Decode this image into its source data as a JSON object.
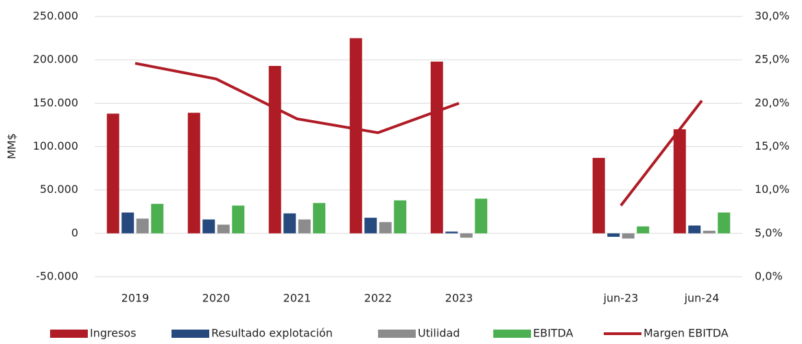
{
  "chart_data": {
    "type": "bar",
    "y_label": "MM$",
    "categories": [
      "2019",
      "2020",
      "2021",
      "2022",
      "2023",
      null,
      "jun-23",
      "jun-24"
    ],
    "series": [
      {
        "name": "Ingresos",
        "color": "#b01c26",
        "values": [
          138000,
          139000,
          193000,
          225000,
          198000,
          null,
          87000,
          120000
        ]
      },
      {
        "name": "Resultado explotación",
        "color": "#264a7e",
        "values": [
          24000,
          16000,
          23000,
          18000,
          2000,
          null,
          -4000,
          9000
        ]
      },
      {
        "name": "Utilidad",
        "color": "#8c8c8c",
        "values": [
          17000,
          10000,
          16000,
          13000,
          -5000,
          null,
          -6000,
          3000
        ]
      },
      {
        "name": "EBITDA",
        "color": "#4caf50",
        "values": [
          34000,
          32000,
          35000,
          38000,
          40000,
          null,
          8000,
          24000
        ]
      },
      {
        "name": "Margen EBITDA",
        "color": "#b01c26",
        "type": "line",
        "axis": "y2",
        "values": [
          24.6,
          22.8,
          18.2,
          16.6,
          20.0,
          null,
          8.2,
          20.3
        ]
      }
    ],
    "ylim": [
      -50000,
      250000
    ],
    "yticks": [
      {
        "value": -50000,
        "label": "-50.000"
      },
      0,
      {
        "value": 50000,
        "label": "50.000"
      },
      {
        "value": 100000,
        "label": "100.000"
      },
      {
        "value": 150000,
        "label": "150.000"
      },
      {
        "value": 200000,
        "label": "200.000"
      },
      {
        "value": 250000,
        "label": "250.000"
      }
    ],
    "y2lim": [
      0,
      30
    ],
    "y2ticks": [
      {
        "value": 0,
        "label": "0,0%"
      },
      {
        "value": 5,
        "label": "5,0%"
      },
      {
        "value": 10,
        "label": "10,0%"
      },
      {
        "value": 15,
        "label": "15,0%"
      },
      {
        "value": 20,
        "label": "20,0%"
      },
      {
        "value": 25,
        "label": "25,0%"
      },
      {
        "value": 30,
        "label": "30,0%"
      }
    ],
    "grid": true,
    "legend": "bottom"
  }
}
